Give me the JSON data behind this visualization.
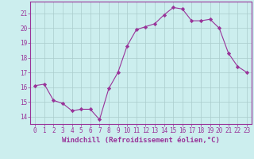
{
  "x": [
    0,
    1,
    2,
    3,
    4,
    5,
    6,
    7,
    8,
    9,
    10,
    11,
    12,
    13,
    14,
    15,
    16,
    17,
    18,
    19,
    20,
    21,
    22,
    23
  ],
  "y": [
    16.1,
    16.2,
    15.1,
    14.9,
    14.4,
    14.5,
    14.5,
    13.8,
    15.9,
    17.0,
    18.8,
    19.9,
    20.1,
    20.3,
    20.9,
    21.4,
    21.3,
    20.5,
    20.5,
    20.6,
    20.0,
    18.3,
    17.4,
    17.0
  ],
  "line_color": "#993399",
  "marker": "D",
  "marker_size": 2.2,
  "bg_color": "#cceeee",
  "grid_color": "#aacccc",
  "xlabel": "Windchill (Refroidissement éolien,°C)",
  "xlabel_fontsize": 6.5,
  "ylabel_ticks": [
    14,
    15,
    16,
    17,
    18,
    19,
    20,
    21
  ],
  "xtick_labels": [
    "0",
    "1",
    "2",
    "3",
    "4",
    "5",
    "6",
    "7",
    "8",
    "9",
    "10",
    "11",
    "12",
    "13",
    "14",
    "15",
    "16",
    "17",
    "18",
    "19",
    "20",
    "21",
    "22",
    "23"
  ],
  "ylim": [
    13.5,
    21.8
  ],
  "xlim": [
    -0.5,
    23.5
  ],
  "tick_color": "#993399",
  "tick_fontsize": 5.5,
  "axes_color": "#993399",
  "spine_color": "#993399"
}
